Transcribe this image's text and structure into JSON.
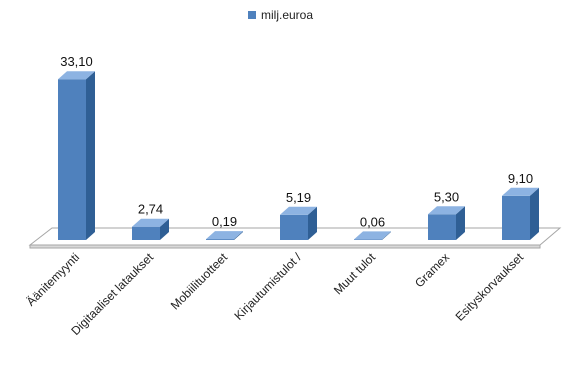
{
  "chart_data": {
    "type": "bar",
    "style": "3d-column",
    "categories": [
      "Äänitemyynti",
      "Digitaaliset lataukset",
      "Mobiilituotteet",
      "Kirjautumistulot /",
      "Muut tulot",
      "Gramex",
      "Esityskorvaukset"
    ],
    "series": [
      {
        "name": "milj.euroa",
        "values": [
          33.1,
          2.74,
          0.19,
          5.19,
          0.06,
          5.3,
          9.1
        ]
      }
    ],
    "data_labels": [
      "33,10",
      "2,74",
      "0,19",
      "5,19",
      "0,06",
      "5,30",
      "9,10"
    ],
    "ylim": [
      0,
      35
    ],
    "grid": false,
    "legend_position": "top",
    "colors": {
      "front": "#4f81bd",
      "top": "#8db3e2",
      "side": "#2f5f95",
      "floor": "#ffffff",
      "floor_edge": "#a6a6a6"
    }
  },
  "legend": {
    "label": "milj.euroa"
  }
}
